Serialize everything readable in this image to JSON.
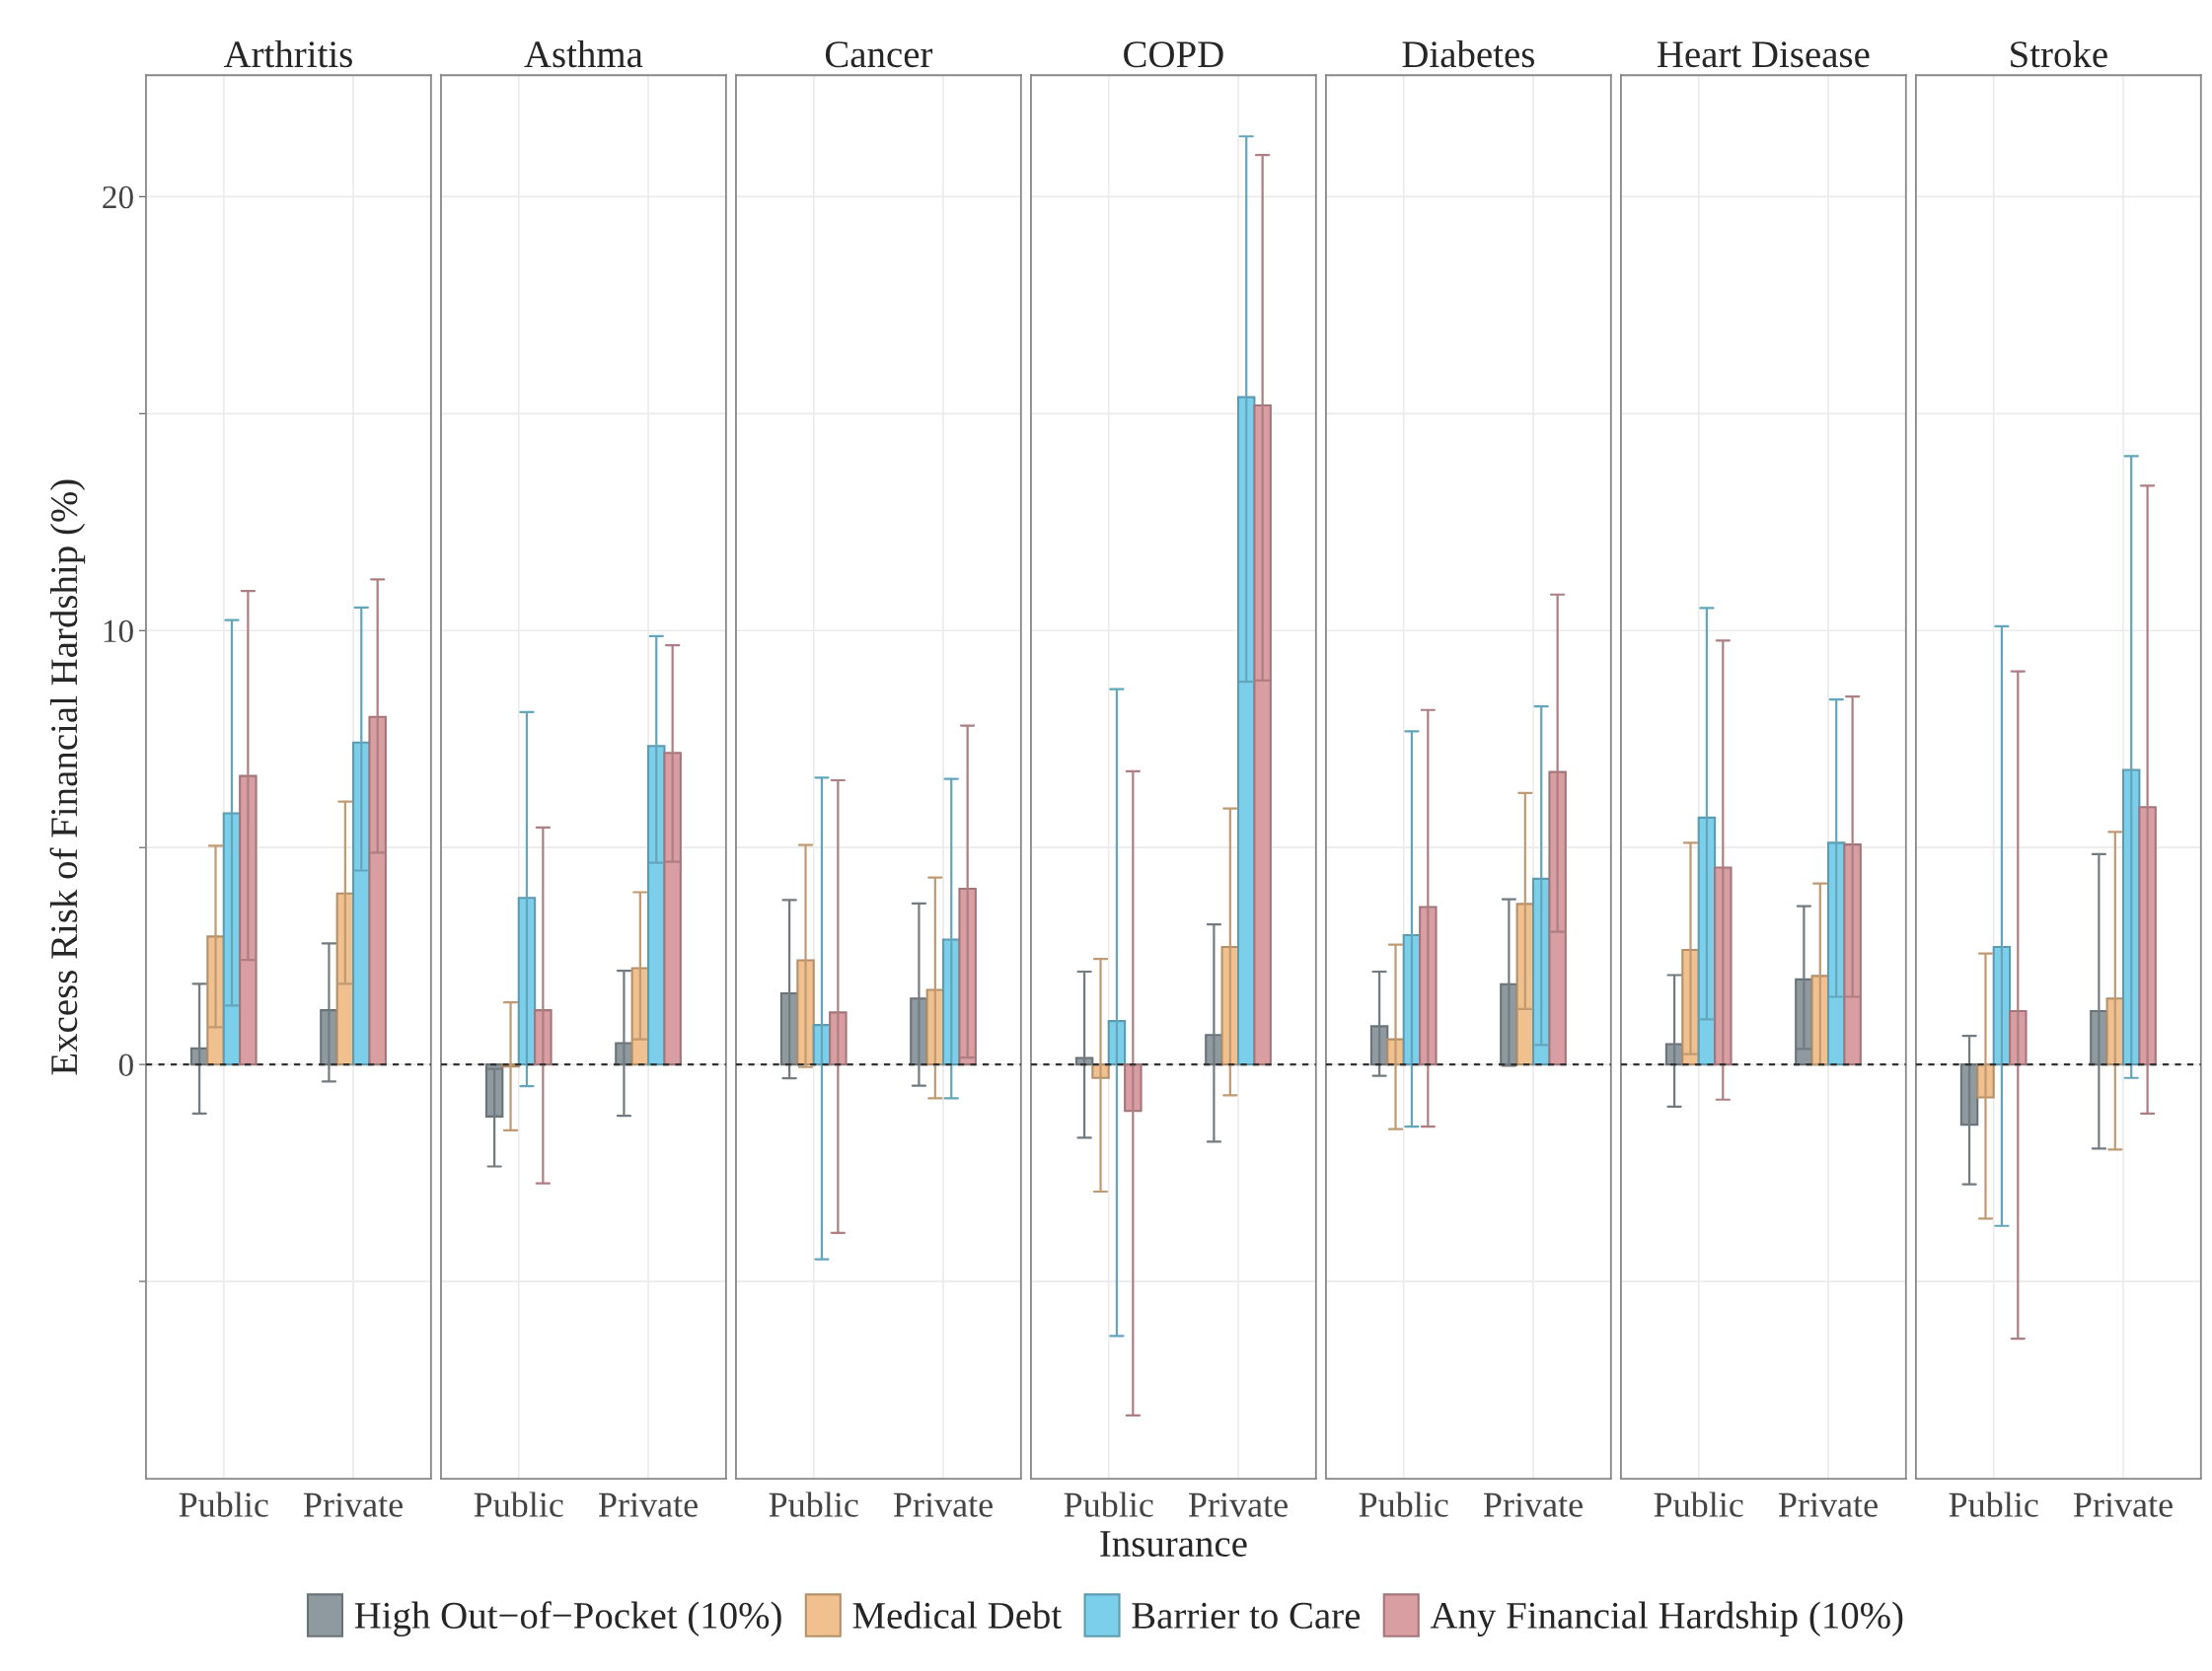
{
  "chart_data": [
    {
      "type": "bar",
      "title": "Arthritis",
      "ylabel": "Excess Risk of Financial Hardship (%)",
      "categories": [
        "Public",
        "Private"
      ],
      "ylim": [
        -9.55,
        22.8
      ],
      "yticks": [
        {
          "value": -5,
          "label": null
        },
        0,
        {
          "value": 5,
          "label": null
        },
        10,
        {
          "value": 15,
          "label": null
        },
        20
      ],
      "grid": true,
      "legend": "bottom",
      "ref_lines": [
        {
          "axis": "y",
          "value": 0,
          "line_style": "dashed",
          "color": "#333333"
        }
      ],
      "series": [
        {
          "name": "High Out−of−Pocket (10%)",
          "color": "#8e9aa0",
          "values": [
            0.37,
            1.25
          ],
          "errors": [
            [
              -1.13,
              1.86
            ],
            [
              -0.39,
              2.79
            ]
          ]
        },
        {
          "name": "Medical Debt",
          "color": "#f0c08e",
          "values": [
            2.95,
            3.94
          ],
          "errors": [
            [
              0.86,
              5.04
            ],
            [
              1.86,
              6.06
            ]
          ]
        },
        {
          "name": "Barrier to Care",
          "color": "#7ccfea",
          "values": [
            5.79,
            7.42
          ],
          "errors": [
            [
              1.36,
              10.24
            ],
            [
              4.47,
              10.53
            ]
          ]
        },
        {
          "name": "Any Financial Hardship (10%)",
          "color": "#d89ea2",
          "values": [
            6.65,
            8.01
          ],
          "errors": [
            [
              2.41,
              10.91
            ],
            [
              4.88,
              11.18
            ]
          ]
        }
      ]
    },
    {
      "type": "bar",
      "title": "Asthma",
      "categories": [
        "Public",
        "Private"
      ],
      "ylim": [
        -9.55,
        22.8
      ],
      "yticks": [
        {
          "value": -5,
          "label": null
        },
        0,
        {
          "value": 5,
          "label": null
        },
        10,
        {
          "value": 15,
          "label": null
        },
        20
      ],
      "grid": true,
      "tick_labels": "x",
      "ref_lines": [
        {
          "axis": "y",
          "value": 0,
          "line_style": "dashed",
          "color": "#333333"
        }
      ],
      "series": [
        {
          "color": "#8e9aa0",
          "values": [
            -1.2,
            0.49
          ],
          "errors": [
            [
              -2.35,
              -0.1
            ],
            [
              -1.18,
              2.16
            ]
          ]
        },
        {
          "color": "#f0c08e",
          "values": [
            -0.05,
            2.22
          ],
          "errors": [
            [
              -1.52,
              1.43
            ],
            [
              0.58,
              3.97
            ]
          ]
        },
        {
          "color": "#7ccfea",
          "values": [
            3.84,
            7.34
          ],
          "errors": [
            [
              -0.5,
              8.12
            ],
            [
              4.65,
              9.87
            ]
          ]
        },
        {
          "color": "#d89ea2",
          "values": [
            1.25,
            7.18
          ],
          "errors": [
            [
              -2.74,
              5.46
            ],
            [
              4.67,
              9.66
            ]
          ]
        }
      ]
    },
    {
      "type": "bar",
      "title": "Cancer",
      "categories": [
        "Public",
        "Private"
      ],
      "ylim": [
        -9.55,
        22.8
      ],
      "yticks": [
        {
          "value": -5,
          "label": null
        },
        0,
        {
          "value": 5,
          "label": null
        },
        10,
        {
          "value": 15,
          "label": null
        },
        20
      ],
      "grid": true,
      "tick_labels": "x",
      "ref_lines": [
        {
          "axis": "y",
          "value": 0,
          "line_style": "dashed",
          "color": "#333333"
        }
      ],
      "series": [
        {
          "color": "#8e9aa0",
          "values": [
            1.64,
            1.52
          ],
          "errors": [
            [
              -0.32,
              3.79
            ],
            [
              -0.49,
              3.71
            ]
          ]
        },
        {
          "color": "#f0c08e",
          "values": [
            2.4,
            1.72
          ],
          "errors": [
            [
              -0.06,
              5.06
            ],
            [
              -0.78,
              4.31
            ]
          ]
        },
        {
          "color": "#7ccfea",
          "values": [
            0.91,
            2.88
          ],
          "errors": [
            [
              -4.49,
              6.61
            ],
            [
              -0.78,
              6.58
            ]
          ]
        },
        {
          "color": "#d89ea2",
          "values": [
            1.2,
            4.05
          ],
          "errors": [
            [
              -3.88,
              6.55
            ],
            [
              0.16,
              7.81
            ]
          ]
        }
      ]
    },
    {
      "type": "bar",
      "title": "COPD",
      "xlabel": "Insurance",
      "categories": [
        "Public",
        "Private"
      ],
      "ylim": [
        -9.55,
        22.8
      ],
      "yticks": [
        {
          "value": -5,
          "label": null
        },
        0,
        {
          "value": 5,
          "label": null
        },
        10,
        {
          "value": 15,
          "label": null
        },
        20
      ],
      "grid": true,
      "tick_labels": "x",
      "ref_lines": [
        {
          "axis": "y",
          "value": 0,
          "line_style": "dashed",
          "color": "#333333"
        }
      ],
      "series": [
        {
          "color": "#8e9aa0",
          "values": [
            0.15,
            0.68
          ],
          "errors": [
            [
              -1.69,
              2.14
            ],
            [
              -1.78,
              3.23
            ]
          ]
        },
        {
          "color": "#f0c08e",
          "values": [
            -0.31,
            2.71
          ],
          "errors": [
            [
              -2.93,
              2.43
            ],
            [
              -0.71,
              5.9
            ]
          ]
        },
        {
          "color": "#7ccfea",
          "values": [
            1.0,
            15.38
          ],
          "errors": [
            [
              -6.26,
              8.65
            ],
            [
              8.82,
              21.39
            ]
          ]
        },
        {
          "color": "#d89ea2",
          "values": [
            -1.07,
            15.19
          ],
          "errors": [
            [
              -8.09,
              6.76
            ],
            [
              8.85,
              20.96
            ]
          ]
        }
      ]
    },
    {
      "type": "bar",
      "title": "Diabetes",
      "categories": [
        "Public",
        "Private"
      ],
      "ylim": [
        -9.55,
        22.8
      ],
      "yticks": [
        {
          "value": -5,
          "label": null
        },
        0,
        {
          "value": 5,
          "label": null
        },
        10,
        {
          "value": 15,
          "label": null
        },
        20
      ],
      "grid": true,
      "tick_labels": "x",
      "ref_lines": [
        {
          "axis": "y",
          "value": 0,
          "line_style": "dashed",
          "color": "#333333"
        }
      ],
      "series": [
        {
          "color": "#8e9aa0",
          "values": [
            0.88,
            1.85
          ],
          "errors": [
            [
              -0.26,
              2.14
            ],
            [
              -0.03,
              3.81
            ]
          ]
        },
        {
          "color": "#f0c08e",
          "values": [
            0.58,
            3.7
          ],
          "errors": [
            [
              -1.49,
              2.76
            ],
            [
              1.28,
              6.26
            ]
          ]
        },
        {
          "color": "#7ccfea",
          "values": [
            2.98,
            4.28
          ],
          "errors": [
            [
              -1.43,
              7.68
            ],
            [
              0.45,
              8.25
            ]
          ]
        },
        {
          "color": "#d89ea2",
          "values": [
            3.63,
            6.74
          ],
          "errors": [
            [
              -1.43,
              8.17
            ],
            [
              3.06,
              10.83
            ]
          ]
        }
      ]
    },
    {
      "type": "bar",
      "title": "Heart Disease",
      "categories": [
        "Public",
        "Private"
      ],
      "ylim": [
        -9.55,
        22.8
      ],
      "yticks": [
        {
          "value": -5,
          "label": null
        },
        0,
        {
          "value": 5,
          "label": null
        },
        10,
        {
          "value": 15,
          "label": null
        },
        20
      ],
      "grid": true,
      "tick_labels": "x",
      "ref_lines": [
        {
          "axis": "y",
          "value": 0,
          "line_style": "dashed",
          "color": "#333333"
        }
      ],
      "series": [
        {
          "color": "#8e9aa0",
          "values": [
            0.47,
            1.96
          ],
          "errors": [
            [
              -0.97,
              2.06
            ],
            [
              0.36,
              3.65
            ]
          ]
        },
        {
          "color": "#f0c08e",
          "values": [
            2.64,
            2.04
          ],
          "errors": [
            [
              0.24,
              5.11
            ],
            [
              0.0,
              4.17
            ]
          ]
        },
        {
          "color": "#7ccfea",
          "values": [
            5.69,
            5.11
          ],
          "errors": [
            [
              1.04,
              10.52
            ],
            [
              1.56,
              8.41
            ]
          ]
        },
        {
          "color": "#d89ea2",
          "values": [
            4.54,
            5.07
          ],
          "errors": [
            [
              -0.81,
              9.77
            ],
            [
              1.56,
              8.48
            ]
          ]
        }
      ]
    },
    {
      "type": "bar",
      "title": "Stroke",
      "categories": [
        "Public",
        "Private"
      ],
      "ylim": [
        -9.55,
        22.8
      ],
      "yticks": [
        {
          "value": -5,
          "label": null
        },
        0,
        {
          "value": 5,
          "label": null
        },
        10,
        {
          "value": 15,
          "label": null
        },
        20
      ],
      "grid": true,
      "tick_labels": "x",
      "ref_lines": [
        {
          "axis": "y",
          "value": 0,
          "line_style": "dashed",
          "color": "#333333"
        }
      ],
      "series": [
        {
          "color": "#8e9aa0",
          "values": [
            -1.39,
            1.23
          ],
          "errors": [
            [
              -2.76,
              0.66
            ],
            [
              -1.94,
              4.85
            ]
          ]
        },
        {
          "color": "#f0c08e",
          "values": [
            -0.76,
            1.52
          ],
          "errors": [
            [
              -3.55,
              2.56
            ],
            [
              -1.96,
              5.36
            ]
          ]
        },
        {
          "color": "#7ccfea",
          "values": [
            2.71,
            6.79
          ],
          "errors": [
            [
              -3.72,
              10.1
            ],
            [
              -0.31,
              14.02
            ]
          ]
        },
        {
          "color": "#d89ea2",
          "values": [
            1.23,
            5.93
          ],
          "errors": [
            [
              -6.32,
              9.06
            ],
            [
              -1.13,
              13.34
            ]
          ]
        }
      ]
    }
  ]
}
